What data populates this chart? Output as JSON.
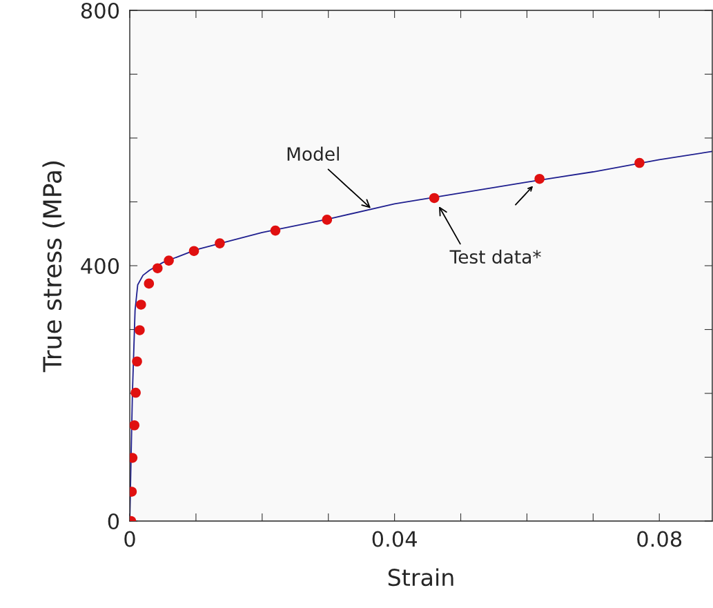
{
  "chart_data": {
    "type": "scatter",
    "xlabel": "Strain",
    "ylabel": "True stress (MPa)",
    "xlim": [
      0,
      0.088
    ],
    "ylim": [
      0,
      800
    ],
    "xticks": [
      0,
      {
        "value": 0.01,
        "label": null
      },
      {
        "value": 0.02,
        "label": null
      },
      {
        "value": 0.03,
        "label": null
      },
      0.04,
      {
        "value": 0.05,
        "label": null
      },
      {
        "value": 0.06,
        "label": null
      },
      {
        "value": 0.07,
        "label": null
      },
      0.08
    ],
    "yticks": [
      0,
      {
        "value": 100,
        "label": null
      },
      {
        "value": 200,
        "label": null
      },
      {
        "value": 300,
        "label": null
      },
      400,
      {
        "value": 500,
        "label": null
      },
      {
        "value": 600,
        "label": null
      },
      {
        "value": 700,
        "label": null
      },
      800
    ],
    "grid": false,
    "legend": false,
    "series": [
      {
        "type": "line",
        "color": "#1f1f8f",
        "marker": "none",
        "line_style": "solid",
        "x": [
          0,
          0.0004,
          0.0008,
          0.0012,
          0.002,
          0.003,
          0.005,
          0.01,
          0.02,
          0.03,
          0.04,
          0.05,
          0.06,
          0.07,
          0.08,
          0.088
        ],
        "values": [
          0,
          200,
          330,
          370,
          385,
          393,
          405,
          425,
          452,
          473,
          497,
          514,
          531,
          547,
          566,
          579
        ]
      },
      {
        "type": "scatter",
        "color": "#e01010",
        "marker": "circle",
        "x": [
          0.0002,
          0.0003,
          0.0004,
          0.0007,
          0.0009,
          0.0011,
          0.0015,
          0.0017,
          0.0029,
          0.0042,
          0.0059,
          0.0097,
          0.0136,
          0.022,
          0.0298,
          0.046,
          0.0619,
          0.077
        ],
        "values": [
          0,
          46,
          99,
          150,
          201,
          250,
          299,
          339,
          372,
          396,
          408,
          423,
          435,
          455,
          472,
          506,
          536,
          561
        ]
      }
    ],
    "annotations": [
      {
        "text": "Model",
        "x": 0.0364,
        "y": 490
      },
      {
        "text": "Test data*",
        "x": 0.046,
        "y": 506
      }
    ]
  }
}
